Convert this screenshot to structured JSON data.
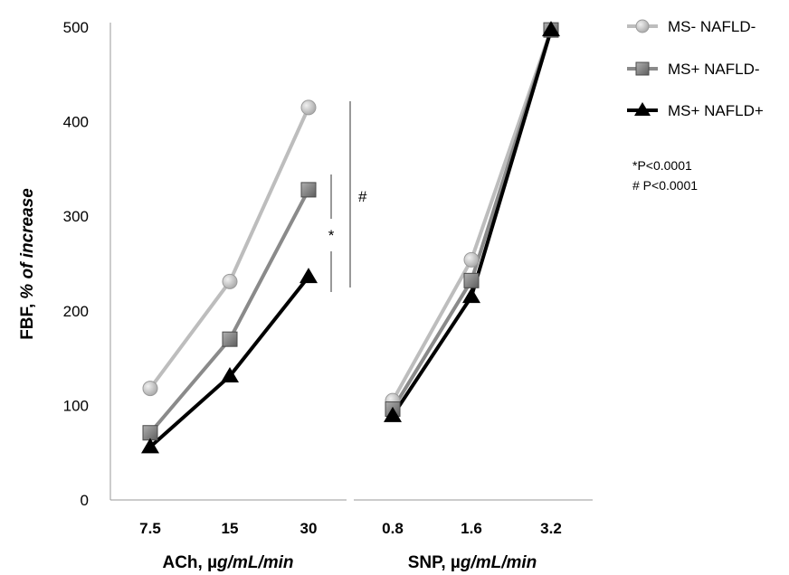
{
  "chart_data": {
    "type": "line",
    "ylabel_main": "FBF,",
    "ylabel_italic": "% of increase",
    "ylim": [
      0,
      500
    ],
    "yticks": [
      "0",
      "100",
      "200",
      "300",
      "400",
      "500"
    ],
    "grid": false,
    "legend_position": "top-right",
    "panels": [
      {
        "xlabel_main": "ACh, µ",
        "xlabel_italic": "g/mL/min",
        "categories": [
          "7.5",
          "15",
          "30"
        ],
        "series": [
          {
            "name": "MS- NAFLD-",
            "values": [
              118,
              231,
              415
            ]
          },
          {
            "name": "MS+ NAFLD-",
            "values": [
              71,
              170,
              328
            ]
          },
          {
            "name": "MS+ NAFLD+",
            "values": [
              56,
              131,
              236
            ]
          }
        ]
      },
      {
        "xlabel_main": "SNP, µ",
        "xlabel_italic": "g/mL/min",
        "categories": [
          "0.8",
          "1.6",
          "3.2"
        ],
        "series": [
          {
            "name": "MS- NAFLD-",
            "values": [
              105,
              254,
              497
            ]
          },
          {
            "name": "MS+ NAFLD-",
            "values": [
              96,
              232,
              497
            ]
          },
          {
            "name": "MS+ NAFLD+",
            "values": [
              89,
              215,
              497
            ]
          }
        ]
      }
    ],
    "series_styles": [
      {
        "name": "MS- NAFLD-",
        "marker": "circle",
        "color": "#bdbdbd"
      },
      {
        "name": "MS+ NAFLD-",
        "marker": "square",
        "color": "#8a8a8a"
      },
      {
        "name": "MS+ NAFLD+",
        "marker": "triangle",
        "color": "#000000"
      }
    ],
    "significance_marks": [
      "*",
      "#"
    ],
    "notes": [
      "*P<0.0001",
      "# P<0.0001"
    ]
  }
}
